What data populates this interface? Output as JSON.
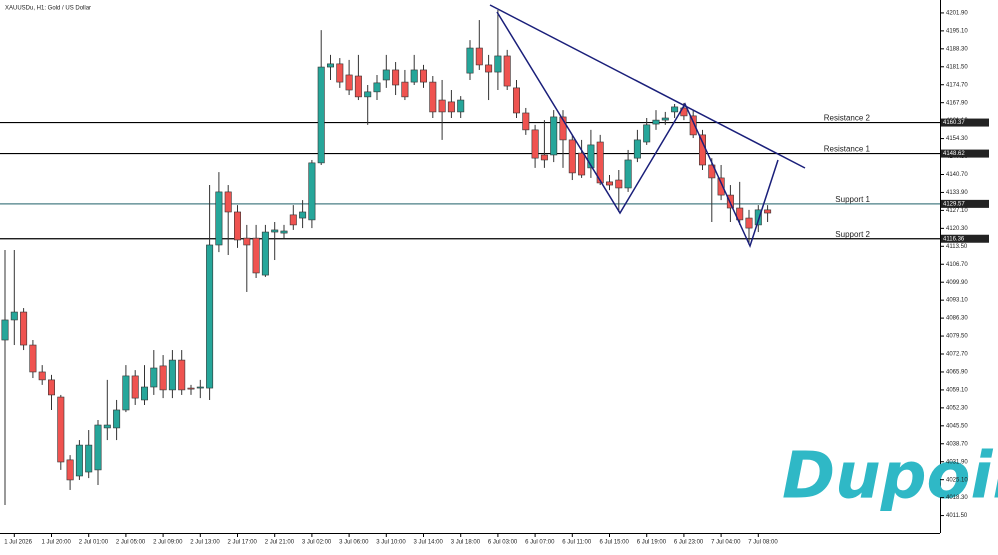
{
  "chart_data": {
    "type": "candlestick",
    "title": "XAUUSDu, H1:  Gold / US Dollar",
    "watermark": "Dupoin",
    "up_color": "#26a69a",
    "down_color": "#ef5350",
    "categories": [
      null,
      "1 Jul 2026",
      null,
      null,
      null,
      "1 Jul 20:00",
      null,
      null,
      null,
      "2 Jul 01:00",
      null,
      null,
      null,
      "2 Jul 05:00",
      null,
      null,
      null,
      "2 Jul 09:00",
      null,
      null,
      null,
      "2 Jul 13:00",
      null,
      null,
      null,
      "2 Jul 17:00",
      null,
      null,
      null,
      "2 Jul 21:00",
      null,
      null,
      null,
      "3 Jul 02:00",
      null,
      null,
      null,
      "3 Jul 06:00",
      null,
      null,
      null,
      "3 Jul 10:00",
      null,
      null,
      null,
      "3 Jul 14:00",
      null,
      null,
      null,
      "3 Jul 18:00",
      null,
      null,
      null,
      "6 Jul 03:00",
      null,
      null,
      null,
      "6 Jul 07:00",
      null,
      null,
      null,
      "6 Jul 11:00",
      null,
      null,
      null,
      "6 Jul 15:00",
      null,
      null,
      null,
      "6 Jul 19:00",
      null,
      null,
      null,
      "6 Jul 23:00",
      null,
      null,
      null,
      "7 Jul 04:00",
      null,
      null,
      null,
      "7 Jul 08:00",
      null
    ],
    "open": [
      4078.0,
      4085.6,
      4088.6,
      4076.1,
      4065.9,
      4062.9,
      4056.4,
      4032.6,
      4026.5,
      4028.0,
      4028.8,
      4044.7,
      4044.7,
      4051.5,
      4064.4,
      4055.3,
      4060.2,
      4068.2,
      4059.1,
      4070.4,
      4059.8,
      4059.8,
      4059.8,
      4114.0,
      4134.1,
      4126.5,
      4116.6,
      4116.6,
      4102.6,
      4118.9,
      4118.5,
      4125.4,
      4124.2,
      4123.5,
      4145.1,
      4181.4,
      4182.6,
      4178.4,
      4178.0,
      4170.1,
      4172.0,
      4176.5,
      4180.3,
      4175.7,
      4175.7,
      4180.3,
      4175.7,
      4168.9,
      4168.2,
      4164.4,
      4179.1,
      4188.6,
      4182.2,
      4179.5,
      4185.6,
      4173.5,
      4164.0,
      4157.6,
      4148.1,
      4148.1,
      4162.5,
      4153.8,
      4148.8,
      4143.2,
      4153.0,
      4137.9,
      4138.6,
      4135.6,
      4146.9,
      4153.0,
      4159.8,
      4161.3,
      4164.4,
      4165.9,
      4162.9,
      4155.7,
      4144.3,
      4139.4,
      4132.9,
      4128.0,
      4124.2,
      4121.6,
      4127.3
    ],
    "high": [
      4112.1,
      4112.1,
      4090.1,
      4078.0,
      4068.5,
      4064.8,
      4057.2,
      4034.4,
      4040.1,
      4043.9,
      4047.7,
      4062.9,
      4055.3,
      4068.5,
      4066.6,
      4068.5,
      4074.2,
      4072.3,
      4074.2,
      4074.2,
      4061.0,
      4062.9,
      4136.7,
      4141.6,
      4136.7,
      4129.1,
      4121.6,
      4121.6,
      4121.6,
      4122.7,
      4121.6,
      4129.1,
      4131.0,
      4146.2,
      4195.4,
      4186.0,
      4184.8,
      4184.1,
      4186.0,
      4174.6,
      4178.4,
      4186.0,
      4183.3,
      4180.3,
      4186.0,
      4182.2,
      4178.0,
      4176.5,
      4172.7,
      4170.4,
      4191.6,
      4199.2,
      4186.0,
      4203.0,
      4187.9,
      4176.5,
      4165.9,
      4159.5,
      4161.3,
      4165.1,
      4165.1,
      4155.7,
      4153.8,
      4157.6,
      4155.7,
      4140.5,
      4142.4,
      4150.0,
      4157.6,
      4162.1,
      4165.1,
      4164.4,
      4167.4,
      4167.8,
      4165.1,
      4157.6,
      4146.9,
      4144.3,
      4136.7,
      4137.9,
      4127.3,
      4129.1,
      4129.1
    ],
    "low": [
      4015.5,
      4076.1,
      4074.2,
      4063.6,
      4061.0,
      4051.5,
      4028.8,
      4021.2,
      4025.0,
      4025.7,
      4023.1,
      4040.1,
      4040.1,
      4050.7,
      4053.4,
      4053.4,
      4057.2,
      4056.0,
      4056.0,
      4057.2,
      4057.2,
      4056.0,
      4055.3,
      4111.3,
      4110.2,
      4112.9,
      4096.2,
      4101.5,
      4101.9,
      4108.3,
      4116.6,
      4119.7,
      4120.4,
      4120.4,
      4144.3,
      4176.5,
      4173.5,
      4170.8,
      4168.9,
      4159.5,
      4168.9,
      4173.5,
      4170.8,
      4168.9,
      4174.6,
      4173.5,
      4162.1,
      4153.8,
      4162.1,
      4162.1,
      4176.5,
      4180.3,
      4168.9,
      4172.7,
      4172.7,
      4162.1,
      4155.7,
      4143.2,
      4143.2,
      4145.4,
      4143.2,
      4138.6,
      4139.4,
      4139.4,
      4136.7,
      4134.8,
      4126.5,
      4134.1,
      4145.4,
      4151.9,
      4157.6,
      4159.5,
      4162.1,
      4161.3,
      4154.5,
      4142.4,
      4122.7,
      4131.0,
      4122.7,
      4121.6,
      4114.0,
      4118.9,
      4122.7
    ],
    "close": [
      4085.6,
      4088.6,
      4076.1,
      4065.9,
      4062.9,
      4057.2,
      4031.8,
      4025.0,
      4038.2,
      4038.2,
      4045.8,
      4045.8,
      4051.5,
      4064.4,
      4056.0,
      4060.2,
      4067.4,
      4059.1,
      4070.4,
      4059.1,
      4059.4,
      4060.2,
      4114.0,
      4134.1,
      4126.5,
      4115.9,
      4114.0,
      4103.4,
      4118.9,
      4119.7,
      4119.3,
      4121.6,
      4126.5,
      4145.1,
      4181.4,
      4182.6,
      4175.7,
      4172.7,
      4170.1,
      4172.0,
      4175.4,
      4180.3,
      4174.6,
      4170.1,
      4180.3,
      4175.7,
      4164.4,
      4164.4,
      4164.4,
      4168.9,
      4188.6,
      4182.2,
      4179.5,
      4185.6,
      4174.2,
      4164.0,
      4157.6,
      4146.9,
      4146.2,
      4162.5,
      4153.8,
      4141.3,
      4140.5,
      4151.9,
      4137.5,
      4136.7,
      4135.6,
      4146.2,
      4153.8,
      4159.5,
      4161.3,
      4162.1,
      4166.3,
      4162.9,
      4155.7,
      4144.3,
      4139.4,
      4132.9,
      4128.0,
      4123.5,
      4120.4,
      4127.3,
      4126.1
    ],
    "ylim": [
      4004.9,
      4204.9
    ],
    "yticks": [
      {
        "value": 4201.9,
        "label": "4201.90"
      },
      {
        "value": 4195.1,
        "label": "4195.10"
      },
      {
        "value": 4188.3,
        "label": "4188.30"
      },
      {
        "value": 4181.5,
        "label": "4181.50"
      },
      {
        "value": 4174.7,
        "label": "4174.70"
      },
      {
        "value": 4167.9,
        "label": "4167.90"
      },
      {
        "value": 4161.1,
        "label": "4161.10"
      },
      {
        "value": 4154.3,
        "label": "4154.30"
      },
      {
        "value": 4147.5,
        "label": "4147.50"
      },
      {
        "value": 4140.7,
        "label": "4140.70"
      },
      {
        "value": 4133.9,
        "label": "4133.90"
      },
      {
        "value": 4127.1,
        "label": "4127.10"
      },
      {
        "value": 4120.3,
        "label": "4120.30"
      },
      {
        "value": 4113.5,
        "label": "4113.50"
      },
      {
        "value": 4106.7,
        "label": "4106.70"
      },
      {
        "value": 4099.9,
        "label": "4099.90"
      },
      {
        "value": 4093.1,
        "label": "4093.10"
      },
      {
        "value": 4086.3,
        "label": "4086.30"
      },
      {
        "value": 4079.5,
        "label": "4079.50"
      },
      {
        "value": 4072.7,
        "label": "4072.70"
      },
      {
        "value": 4065.9,
        "label": "4065.90"
      },
      {
        "value": 4059.1,
        "label": "4059.10"
      },
      {
        "value": 4052.3,
        "label": "4052.30"
      },
      {
        "value": 4045.5,
        "label": "4045.50"
      },
      {
        "value": 4038.7,
        "label": "4038.70"
      },
      {
        "value": 4031.9,
        "label": "4031.90"
      },
      {
        "value": 4025.1,
        "label": "4025.10"
      },
      {
        "value": 4018.3,
        "label": "4018.30"
      },
      {
        "value": 4011.5,
        "label": "4011.50"
      }
    ],
    "levels": [
      {
        "name": "Resistance 2",
        "value": 4160.37,
        "color": "#000000"
      },
      {
        "name": "Resistance 1",
        "value": 4148.62,
        "color": "#000000"
      },
      {
        "name": "Support 1",
        "value": 4129.57,
        "color": "#4a7f86"
      },
      {
        "name": "Support 2",
        "value": 4116.36,
        "color": "#000000"
      }
    ]
  }
}
